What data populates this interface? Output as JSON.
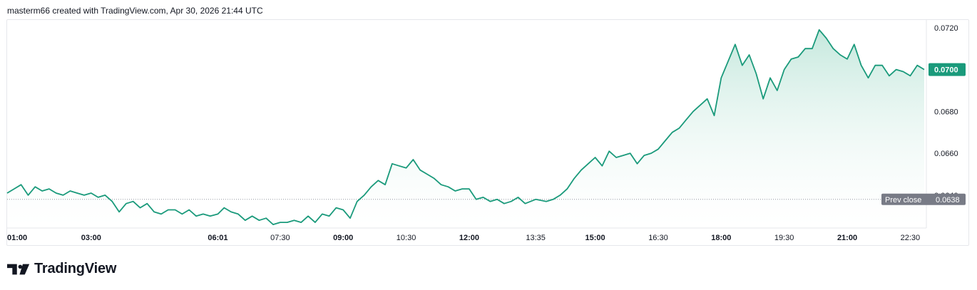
{
  "attribution": "masterm66 created with TradingView.com, Apr 30, 2026 21:44 UTC",
  "brand": {
    "name": "TradingView",
    "logo_icon": "tradingview-logo-icon"
  },
  "colors": {
    "line": "#1a9a7b",
    "fill_top": "#a6dccb",
    "fill_bottom": "#ffffff",
    "prev_close_badge": "#787b86",
    "last_badge": "#1a9a7b"
  },
  "chart_data": {
    "type": "area",
    "y_axis": {
      "min": 0.0625,
      "max": 0.0723,
      "side": "right",
      "ticks": [
        {
          "value": 0.072,
          "label": "0.0720"
        },
        {
          "value": 0.07,
          "label": "0.0700"
        },
        {
          "value": 0.068,
          "label": "0.0680"
        },
        {
          "value": 0.066,
          "label": "0.0660"
        },
        {
          "value": 0.064,
          "label": "0.0640"
        }
      ]
    },
    "x_axis": {
      "start": "01:00",
      "end": "22:50",
      "ticks": [
        {
          "time": "01:00",
          "label": "01:00",
          "bold": true
        },
        {
          "time": "03:00",
          "label": "03:00",
          "bold": true
        },
        {
          "time": "06:01",
          "label": "06:01",
          "bold": true
        },
        {
          "time": "07:30",
          "label": "07:30",
          "bold": false
        },
        {
          "time": "09:00",
          "label": "09:00",
          "bold": true
        },
        {
          "time": "10:30",
          "label": "10:30",
          "bold": false
        },
        {
          "time": "12:00",
          "label": "12:00",
          "bold": true
        },
        {
          "time": "13:35",
          "label": "13:35",
          "bold": false
        },
        {
          "time": "15:00",
          "label": "15:00",
          "bold": true
        },
        {
          "time": "16:30",
          "label": "16:30",
          "bold": false
        },
        {
          "time": "18:00",
          "label": "18:00",
          "bold": true
        },
        {
          "time": "19:30",
          "label": "19:30",
          "bold": false
        },
        {
          "time": "21:00",
          "label": "21:00",
          "bold": true
        },
        {
          "time": "22:30",
          "label": "22:30",
          "bold": false
        }
      ]
    },
    "prev_close": {
      "value": 0.0638,
      "label": "Prev close",
      "value_label": "0.0638"
    },
    "last_price": {
      "value": 0.07,
      "label": "0.0700"
    },
    "series": [
      {
        "points": [
          [
            "01:00",
            0.0641
          ],
          [
            "01:10",
            0.0643
          ],
          [
            "01:20",
            0.0645
          ],
          [
            "01:30",
            0.064
          ],
          [
            "01:40",
            0.0644
          ],
          [
            "01:50",
            0.0642
          ],
          [
            "02:00",
            0.0643
          ],
          [
            "02:10",
            0.0641
          ],
          [
            "02:20",
            0.064
          ],
          [
            "02:30",
            0.0642
          ],
          [
            "02:40",
            0.0641
          ],
          [
            "02:50",
            0.064
          ],
          [
            "03:00",
            0.0641
          ],
          [
            "03:10",
            0.0639
          ],
          [
            "03:20",
            0.064
          ],
          [
            "03:30",
            0.0637
          ],
          [
            "03:40",
            0.0632
          ],
          [
            "03:50",
            0.0636
          ],
          [
            "04:00",
            0.0637
          ],
          [
            "04:10",
            0.0634
          ],
          [
            "04:20",
            0.0636
          ],
          [
            "04:30",
            0.0632
          ],
          [
            "04:40",
            0.0631
          ],
          [
            "04:50",
            0.0633
          ],
          [
            "05:00",
            0.0633
          ],
          [
            "05:10",
            0.0631
          ],
          [
            "05:20",
            0.0633
          ],
          [
            "05:30",
            0.063
          ],
          [
            "05:40",
            0.0631
          ],
          [
            "05:50",
            0.063
          ],
          [
            "06:01",
            0.0631
          ],
          [
            "06:10",
            0.0634
          ],
          [
            "06:20",
            0.0632
          ],
          [
            "06:30",
            0.0631
          ],
          [
            "06:40",
            0.0628
          ],
          [
            "06:50",
            0.063
          ],
          [
            "07:00",
            0.0628
          ],
          [
            "07:10",
            0.0629
          ],
          [
            "07:20",
            0.0626
          ],
          [
            "07:30",
            0.0627
          ],
          [
            "07:40",
            0.0627
          ],
          [
            "07:50",
            0.0628
          ],
          [
            "08:00",
            0.0627
          ],
          [
            "08:10",
            0.063
          ],
          [
            "08:20",
            0.0627
          ],
          [
            "08:30",
            0.0631
          ],
          [
            "08:40",
            0.063
          ],
          [
            "08:50",
            0.0634
          ],
          [
            "09:00",
            0.0633
          ],
          [
            "09:10",
            0.0629
          ],
          [
            "09:20",
            0.0637
          ],
          [
            "09:30",
            0.064
          ],
          [
            "09:40",
            0.0644
          ],
          [
            "09:50",
            0.0647
          ],
          [
            "10:00",
            0.0645
          ],
          [
            "10:10",
            0.0655
          ],
          [
            "10:20",
            0.0654
          ],
          [
            "10:30",
            0.0653
          ],
          [
            "10:40",
            0.0657
          ],
          [
            "10:50",
            0.0652
          ],
          [
            "11:00",
            0.065
          ],
          [
            "11:10",
            0.0648
          ],
          [
            "11:20",
            0.0645
          ],
          [
            "11:30",
            0.0644
          ],
          [
            "11:40",
            0.0642
          ],
          [
            "11:50",
            0.0643
          ],
          [
            "12:00",
            0.0643
          ],
          [
            "12:10",
            0.0638
          ],
          [
            "12:20",
            0.0639
          ],
          [
            "12:30",
            0.0637
          ],
          [
            "12:40",
            0.0638
          ],
          [
            "12:50",
            0.0636
          ],
          [
            "13:00",
            0.0637
          ],
          [
            "13:10",
            0.0639
          ],
          [
            "13:20",
            0.0636
          ],
          [
            "13:35",
            0.0638
          ],
          [
            "13:50",
            0.0637
          ],
          [
            "14:00",
            0.0638
          ],
          [
            "14:10",
            0.064
          ],
          [
            "14:20",
            0.0643
          ],
          [
            "14:30",
            0.0648
          ],
          [
            "14:40",
            0.0652
          ],
          [
            "14:50",
            0.0655
          ],
          [
            "15:00",
            0.0658
          ],
          [
            "15:10",
            0.0654
          ],
          [
            "15:20",
            0.0661
          ],
          [
            "15:30",
            0.0658
          ],
          [
            "15:40",
            0.0659
          ],
          [
            "15:50",
            0.066
          ],
          [
            "16:00",
            0.0655
          ],
          [
            "16:10",
            0.0659
          ],
          [
            "16:20",
            0.066
          ],
          [
            "16:30",
            0.0662
          ],
          [
            "16:40",
            0.0666
          ],
          [
            "16:50",
            0.067
          ],
          [
            "17:00",
            0.0672
          ],
          [
            "17:10",
            0.0676
          ],
          [
            "17:20",
            0.068
          ],
          [
            "17:30",
            0.0683
          ],
          [
            "17:40",
            0.0686
          ],
          [
            "17:50",
            0.0678
          ],
          [
            "18:00",
            0.0696
          ],
          [
            "18:10",
            0.0704
          ],
          [
            "18:20",
            0.0712
          ],
          [
            "18:30",
            0.0702
          ],
          [
            "18:40",
            0.0707
          ],
          [
            "18:50",
            0.0698
          ],
          [
            "19:00",
            0.0686
          ],
          [
            "19:10",
            0.0696
          ],
          [
            "19:20",
            0.069
          ],
          [
            "19:30",
            0.07
          ],
          [
            "19:40",
            0.0705
          ],
          [
            "19:50",
            0.0706
          ],
          [
            "20:00",
            0.071
          ],
          [
            "20:10",
            0.071
          ],
          [
            "20:20",
            0.0719
          ],
          [
            "20:30",
            0.0715
          ],
          [
            "20:40",
            0.071
          ],
          [
            "20:50",
            0.0707
          ],
          [
            "21:00",
            0.0705
          ],
          [
            "21:10",
            0.0712
          ],
          [
            "21:20",
            0.0702
          ],
          [
            "21:30",
            0.0696
          ],
          [
            "21:40",
            0.0702
          ],
          [
            "21:50",
            0.0702
          ],
          [
            "22:00",
            0.0697
          ],
          [
            "22:10",
            0.07
          ],
          [
            "22:20",
            0.0699
          ],
          [
            "22:30",
            0.0697
          ],
          [
            "22:40",
            0.0702
          ],
          [
            "22:50",
            0.07
          ]
        ]
      }
    ]
  }
}
